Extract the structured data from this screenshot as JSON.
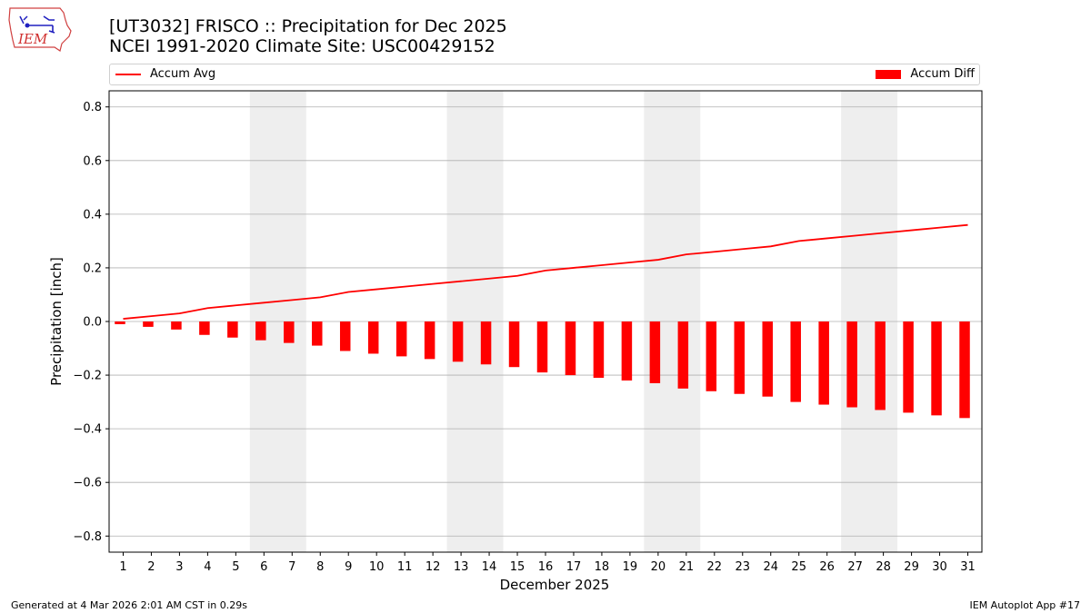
{
  "header": {
    "title_line1": "[UT3032] FRISCO :: Precipitation for Dec 2025",
    "title_line2": "NCEI 1991-2020 Climate Site: USC00429152"
  },
  "logo": {
    "text": "IEM",
    "icon": "iem-logo-icon"
  },
  "legend": {
    "line_label": "Accum Avg",
    "bar_label": "Accum Diff"
  },
  "footer": {
    "left": "Generated at 4 Mar 2026 2:01 AM CST in 0.29s",
    "right": "IEM Autoplot App #17"
  },
  "colors": {
    "series": "#ff0000",
    "weekend_band": "#eeeeee",
    "grid": "#b0b0b0"
  },
  "chart_data": {
    "type": "bar",
    "xlabel": "December 2025",
    "ylabel": "Precipitation [inch]",
    "ylim": [
      -0.86,
      0.86
    ],
    "yticks": [
      -0.8,
      -0.6,
      -0.4,
      -0.2,
      0.0,
      0.2,
      0.4,
      0.6,
      0.8
    ],
    "ytick_labels": [
      "−0.8",
      "−0.6",
      "−0.4",
      "−0.2",
      "0.0",
      "0.2",
      "0.4",
      "0.6",
      "0.8"
    ],
    "grid": "horizontal",
    "x": [
      1,
      2,
      3,
      4,
      5,
      6,
      7,
      8,
      9,
      10,
      11,
      12,
      13,
      14,
      15,
      16,
      17,
      18,
      19,
      20,
      21,
      22,
      23,
      24,
      25,
      26,
      27,
      28,
      29,
      30,
      31
    ],
    "weekend_bands": [
      [
        6,
        7
      ],
      [
        13,
        14
      ],
      [
        20,
        21
      ],
      [
        27,
        28
      ]
    ],
    "series": [
      {
        "name": "Accum Avg",
        "type": "line",
        "values": [
          0.01,
          0.02,
          0.03,
          0.05,
          0.06,
          0.07,
          0.08,
          0.09,
          0.11,
          0.12,
          0.13,
          0.14,
          0.15,
          0.16,
          0.17,
          0.19,
          0.2,
          0.21,
          0.22,
          0.23,
          0.25,
          0.26,
          0.27,
          0.28,
          0.3,
          0.31,
          0.32,
          0.33,
          0.34,
          0.35,
          0.36
        ]
      },
      {
        "name": "Accum Diff",
        "type": "bar",
        "values": [
          -0.01,
          -0.02,
          -0.03,
          -0.05,
          -0.06,
          -0.07,
          -0.08,
          -0.09,
          -0.11,
          -0.12,
          -0.13,
          -0.14,
          -0.15,
          -0.16,
          -0.17,
          -0.19,
          -0.2,
          -0.21,
          -0.22,
          -0.23,
          -0.25,
          -0.26,
          -0.27,
          -0.28,
          -0.3,
          -0.31,
          -0.32,
          -0.33,
          -0.34,
          -0.35,
          -0.36
        ]
      }
    ]
  }
}
